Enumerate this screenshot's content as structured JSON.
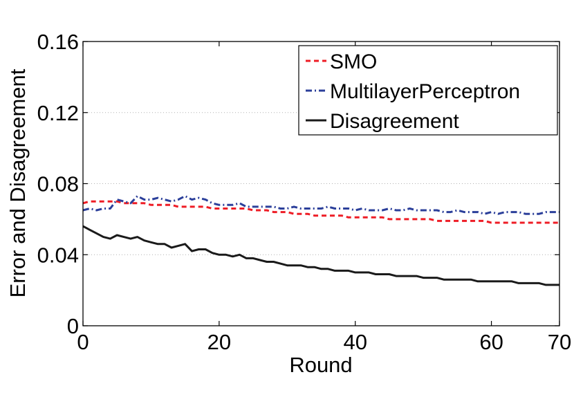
{
  "chart_data": {
    "type": "line",
    "title": "",
    "xlabel": "Round",
    "ylabel": "Error and Disagreement",
    "xlim": [
      0,
      70
    ],
    "ylim": [
      0,
      0.16
    ],
    "xticks": [
      0,
      20,
      40,
      60,
      70
    ],
    "xtick_labels": [
      "0",
      "20",
      "40",
      "60",
      "70"
    ],
    "yticks": [
      0,
      0.04,
      0.08,
      0.12,
      0.16
    ],
    "ytick_labels": [
      "0",
      "0.04",
      "0.08",
      "0.12",
      "0.16"
    ],
    "grid": "horizontal dotted",
    "legend_position": "top-right",
    "x": [
      0,
      1,
      2,
      3,
      4,
      5,
      6,
      7,
      8,
      9,
      10,
      11,
      12,
      13,
      14,
      15,
      16,
      17,
      18,
      19,
      20,
      21,
      22,
      23,
      24,
      25,
      26,
      27,
      28,
      29,
      30,
      31,
      32,
      33,
      34,
      35,
      36,
      37,
      38,
      39,
      40,
      41,
      42,
      43,
      44,
      45,
      46,
      47,
      48,
      49,
      50,
      51,
      52,
      53,
      54,
      55,
      56,
      57,
      58,
      59,
      60,
      61,
      62,
      63,
      64,
      65,
      66,
      67,
      68,
      69,
      70
    ],
    "series": [
      {
        "name": "SMO",
        "color": "#ee1c25",
        "style": "dashed",
        "values": [
          0.069,
          0.07,
          0.07,
          0.07,
          0.07,
          0.07,
          0.069,
          0.069,
          0.069,
          0.069,
          0.068,
          0.068,
          0.068,
          0.068,
          0.067,
          0.067,
          0.067,
          0.067,
          0.067,
          0.066,
          0.066,
          0.066,
          0.066,
          0.066,
          0.066,
          0.065,
          0.065,
          0.065,
          0.064,
          0.064,
          0.064,
          0.063,
          0.063,
          0.063,
          0.062,
          0.062,
          0.062,
          0.062,
          0.062,
          0.061,
          0.061,
          0.061,
          0.061,
          0.061,
          0.061,
          0.06,
          0.06,
          0.06,
          0.06,
          0.06,
          0.06,
          0.06,
          0.059,
          0.059,
          0.059,
          0.059,
          0.059,
          0.059,
          0.059,
          0.059,
          0.058,
          0.058,
          0.058,
          0.058,
          0.058,
          0.058,
          0.058,
          0.058,
          0.058,
          0.058,
          0.058
        ]
      },
      {
        "name": "MultilayerPerceptron",
        "color": "#2b3f9a",
        "style": "dashdot",
        "values": [
          0.065,
          0.066,
          0.065,
          0.066,
          0.066,
          0.071,
          0.07,
          0.069,
          0.073,
          0.071,
          0.071,
          0.072,
          0.071,
          0.07,
          0.071,
          0.073,
          0.071,
          0.072,
          0.071,
          0.069,
          0.068,
          0.068,
          0.068,
          0.069,
          0.067,
          0.067,
          0.067,
          0.067,
          0.067,
          0.066,
          0.066,
          0.067,
          0.066,
          0.066,
          0.066,
          0.066,
          0.067,
          0.066,
          0.066,
          0.066,
          0.065,
          0.066,
          0.065,
          0.065,
          0.065,
          0.066,
          0.065,
          0.065,
          0.066,
          0.065,
          0.065,
          0.065,
          0.065,
          0.064,
          0.064,
          0.065,
          0.064,
          0.064,
          0.064,
          0.063,
          0.064,
          0.063,
          0.064,
          0.064,
          0.064,
          0.063,
          0.063,
          0.063,
          0.064,
          0.064,
          0.064
        ]
      },
      {
        "name": "Disagreement",
        "color": "#1a1a1a",
        "style": "solid",
        "values": [
          0.056,
          0.054,
          0.052,
          0.05,
          0.049,
          0.051,
          0.05,
          0.049,
          0.05,
          0.048,
          0.047,
          0.046,
          0.046,
          0.044,
          0.045,
          0.046,
          0.042,
          0.043,
          0.043,
          0.041,
          0.04,
          0.04,
          0.039,
          0.04,
          0.038,
          0.038,
          0.037,
          0.036,
          0.036,
          0.035,
          0.034,
          0.034,
          0.034,
          0.033,
          0.033,
          0.032,
          0.032,
          0.031,
          0.031,
          0.031,
          0.03,
          0.03,
          0.03,
          0.029,
          0.029,
          0.029,
          0.028,
          0.028,
          0.028,
          0.028,
          0.027,
          0.027,
          0.027,
          0.026,
          0.026,
          0.026,
          0.026,
          0.026,
          0.025,
          0.025,
          0.025,
          0.025,
          0.025,
          0.025,
          0.024,
          0.024,
          0.024,
          0.024,
          0.023,
          0.023,
          0.023
        ]
      }
    ]
  }
}
